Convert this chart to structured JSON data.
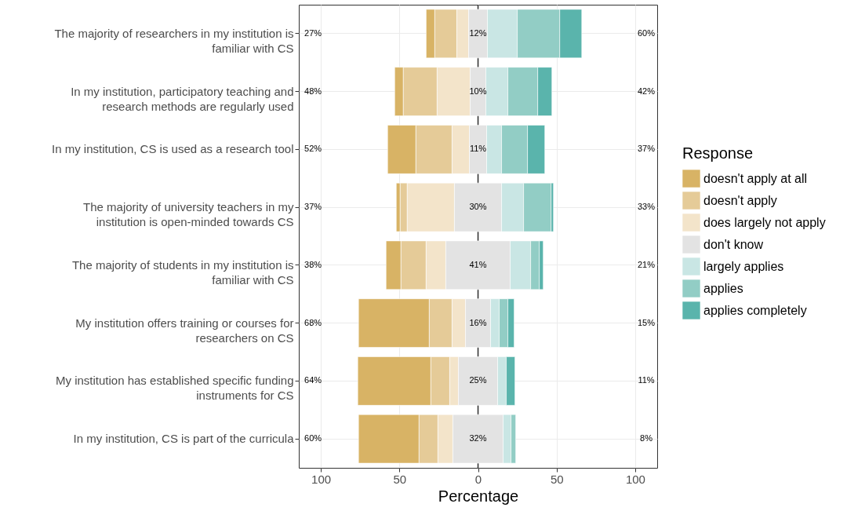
{
  "chart_data": {
    "type": "bar",
    "orientation": "horizontal",
    "stacked": true,
    "xlabel": "Percentage",
    "legend_title": "Response",
    "legend": "right",
    "grid": true,
    "categories": [
      "The majority of researchers in my institution is\nfamiliar with CS",
      "In my institution, participatory teaching and\nresearch methods are regularly used",
      "In my institution, CS is used as a research tool",
      "The majority of university teachers in my\ninstitution is open-minded towards CS",
      "The majority of students in my institution is\nfamiliar with CS",
      "My institution offers training or courses for\nresearchers on CS",
      "My institution has established specific funding\ninstruments for CS",
      "In my institution, CS is part of the curricula"
    ],
    "xlim": [
      -114,
      114
    ],
    "xticks": [
      {
        "value": -100,
        "label": "100"
      },
      {
        "value": -50,
        "label": "50"
      },
      0,
      50,
      100
    ],
    "series": [
      {
        "name": "doesn't apply at all",
        "color": "#d8b365",
        "values": [
          5.5,
          5.5,
          18,
          2.5,
          9.5,
          45,
          46.5,
          38.5
        ],
        "base": [
          -33,
          -53,
          -57.5,
          -52,
          -58.5,
          -76,
          -76.5,
          -76
        ]
      },
      {
        "name": "doesn't apply",
        "color": "#e5cb98",
        "values": [
          14,
          21.5,
          23,
          4.5,
          16,
          14.5,
          12,
          12
        ],
        "base": [
          -27.5,
          -47.5,
          -39.5,
          -49.5,
          -49,
          -31,
          -30,
          -37.5
        ]
      },
      {
        "name": "does largely not apply",
        "color": "#f3e4ca",
        "values": [
          7.5,
          21,
          11,
          30,
          12.5,
          8.5,
          5.5,
          9.5
        ],
        "base": [
          -13.5,
          -26,
          -16.5,
          -45,
          -33,
          -16.5,
          -18,
          -25.5
        ]
      },
      {
        "name": "don't know",
        "color": "#e3e3e3",
        "values": [
          12,
          10,
          11,
          30,
          41,
          16,
          25,
          32
        ],
        "base": [
          -6,
          -5,
          -5.5,
          -15,
          -20.5,
          -8,
          -12.5,
          -16
        ]
      },
      {
        "name": "largely applies",
        "color": "#c9e6e4",
        "values": [
          19,
          14,
          9.5,
          14,
          13,
          5.5,
          5.5,
          5
        ],
        "base": [
          6,
          5,
          5.5,
          15,
          20.5,
          8,
          12.5,
          16
        ]
      },
      {
        "name": "applies",
        "color": "#92cdc5",
        "values": [
          27,
          19,
          16.5,
          17.5,
          5.5,
          5.5,
          null,
          3
        ],
        "base": [
          25,
          19,
          15,
          29,
          33.5,
          13.5,
          null,
          21
        ]
      },
      {
        "name": "applies completely",
        "color": "#5ab4ac",
        "values": [
          14,
          9,
          11,
          1.5,
          2.5,
          4,
          5.5,
          null
        ],
        "base": [
          52,
          38,
          31.5,
          46.5,
          39,
          19,
          18,
          null
        ]
      }
    ],
    "ref_lines": [
      {
        "axis": "x",
        "value": 0,
        "color": "#333333"
      }
    ],
    "annotations": [
      "27%",
      "12%",
      "60%",
      "48%",
      "10%",
      "42%",
      "52%",
      "11%",
      "37%",
      "37%",
      "30%",
      "33%",
      "38%",
      "41%",
      "21%",
      "68%",
      "16%",
      "15%",
      "64%",
      "25%",
      "11%",
      "60%",
      "32%",
      "8%"
    ]
  }
}
